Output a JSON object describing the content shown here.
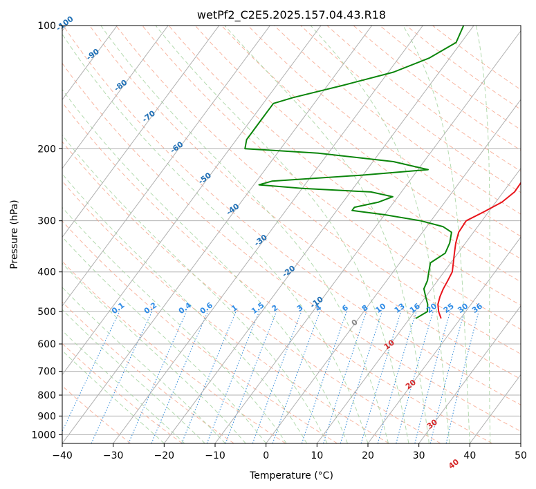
{
  "chart_data": {
    "type": "skew-t",
    "title": "wetPf2_C2E5.2025.157.04.43.R18",
    "xlabel": "Temperature (°C)",
    "ylabel": "Pressure (hPa)",
    "xlim": [
      -40,
      50
    ],
    "ylim_hpa": [
      1050,
      100
    ],
    "y_scale": "log",
    "grid": true,
    "x_ticks": [
      {
        "value": -40,
        "label": "−40"
      },
      {
        "value": -30,
        "label": "−30"
      },
      {
        "value": -20,
        "label": "−20"
      },
      {
        "value": -10,
        "label": "−10"
      },
      {
        "value": 0,
        "label": "0"
      },
      {
        "value": 10,
        "label": "10"
      },
      {
        "value": 20,
        "label": "20"
      },
      {
        "value": 30,
        "label": "30"
      },
      {
        "value": 40,
        "label": "40"
      },
      {
        "value": 50,
        "label": "50"
      }
    ],
    "y_ticks": [
      {
        "value": 100,
        "label": "100"
      },
      {
        "value": 200,
        "label": "200"
      },
      {
        "value": 300,
        "label": "300"
      },
      {
        "value": 400,
        "label": "400"
      },
      {
        "value": 500,
        "label": "500"
      },
      {
        "value": 600,
        "label": "600"
      },
      {
        "value": 700,
        "label": "700"
      },
      {
        "value": 800,
        "label": "800"
      },
      {
        "value": 900,
        "label": "900"
      },
      {
        "value": 1000,
        "label": "1000"
      }
    ],
    "isotherm_labels": [
      {
        "value": -100,
        "label": "-100"
      },
      {
        "value": -90,
        "label": "-90"
      },
      {
        "value": -80,
        "label": "-80"
      },
      {
        "value": -70,
        "label": "-70"
      },
      {
        "value": -60,
        "label": "-60"
      },
      {
        "value": -50,
        "label": "-50"
      },
      {
        "value": -40,
        "label": "-40"
      },
      {
        "value": -30,
        "label": "-30"
      },
      {
        "value": -20,
        "label": "-20"
      },
      {
        "value": -10,
        "label": "-10"
      }
    ],
    "zero_label": {
      "value": 0,
      "label": "0"
    },
    "mixing_ratio_labels": [
      {
        "value": 0.1,
        "label": "0.1"
      },
      {
        "value": 0.2,
        "label": "0.2"
      },
      {
        "value": 0.4,
        "label": "0.4"
      },
      {
        "value": 0.6,
        "label": "0.6"
      },
      {
        "value": 1,
        "label": "1"
      },
      {
        "value": 1.5,
        "label": "1.5"
      },
      {
        "value": 2,
        "label": "2"
      },
      {
        "value": 3,
        "label": "3"
      },
      {
        "value": 4,
        "label": "4"
      },
      {
        "value": 6,
        "label": "6"
      },
      {
        "value": 8,
        "label": "8"
      },
      {
        "value": 10,
        "label": "10"
      },
      {
        "value": 13,
        "label": "13"
      },
      {
        "value": 16,
        "label": "16"
      },
      {
        "value": 20,
        "label": "20"
      },
      {
        "value": 25,
        "label": "25"
      },
      {
        "value": 30,
        "label": "30"
      },
      {
        "value": 36,
        "label": "36"
      }
    ],
    "warm_isotherm_labels": [
      {
        "value": 10,
        "label": "10"
      },
      {
        "value": 20,
        "label": "20"
      },
      {
        "value": 30,
        "label": "30"
      },
      {
        "value": 40,
        "label": "40"
      }
    ],
    "series": [
      {
        "color": "#e8141b",
        "points": [
          [
            520,
            16.2
          ],
          [
            500,
            14.7
          ],
          [
            480,
            13.5
          ],
          [
            460,
            12.8
          ],
          [
            440,
            12.3
          ],
          [
            420,
            12.0
          ],
          [
            400,
            11.6
          ],
          [
            380,
            10.5
          ],
          [
            360,
            9.3
          ],
          [
            340,
            8.1
          ],
          [
            320,
            7.1
          ],
          [
            300,
            6.9
          ],
          [
            285,
            9.1
          ],
          [
            270,
            11.2
          ],
          [
            255,
            12.2
          ],
          [
            240,
            12.1
          ],
          [
            225,
            11.0
          ],
          [
            210,
            9.5
          ],
          [
            195,
            8.7
          ],
          [
            180,
            7.7
          ],
          [
            165,
            6.1
          ],
          [
            150,
            4.6
          ],
          [
            140,
            3.6
          ],
          [
            130,
            2.6
          ],
          [
            120,
            0.9
          ],
          [
            110,
            -0.5
          ],
          [
            100,
            -0.9
          ]
        ]
      },
      {
        "color": "#0a850a",
        "points": [
          [
            520,
            11.2
          ],
          [
            500,
            12.5
          ],
          [
            480,
            11.5
          ],
          [
            460,
            10.0
          ],
          [
            440,
            8.5
          ],
          [
            420,
            8.0
          ],
          [
            400,
            7.0
          ],
          [
            380,
            6.0
          ],
          [
            360,
            7.5
          ],
          [
            340,
            6.9
          ],
          [
            320,
            5.7
          ],
          [
            310,
            3.2
          ],
          [
            300,
            -2.0
          ],
          [
            290,
            -10.0
          ],
          [
            283,
            -17.0
          ],
          [
            278,
            -17.0
          ],
          [
            270,
            -13.0
          ],
          [
            262,
            -11.0
          ],
          [
            255,
            -16.0
          ],
          [
            250,
            -30.0
          ],
          [
            245,
            -39.0
          ],
          [
            240,
            -37.0
          ],
          [
            232,
            -20.0
          ],
          [
            225,
            -8.0
          ],
          [
            215,
            -16.0
          ],
          [
            205,
            -32.0
          ],
          [
            200,
            -47.0
          ],
          [
            190,
            -48.0
          ],
          [
            175,
            -48.0
          ],
          [
            165,
            -48.0
          ],
          [
            155,
            -48.0
          ],
          [
            150,
            -45.0
          ],
          [
            140,
            -37.0
          ],
          [
            130,
            -29.0
          ],
          [
            120,
            -24.0
          ],
          [
            110,
            -21.0
          ],
          [
            100,
            -22.0
          ]
        ]
      }
    ]
  }
}
